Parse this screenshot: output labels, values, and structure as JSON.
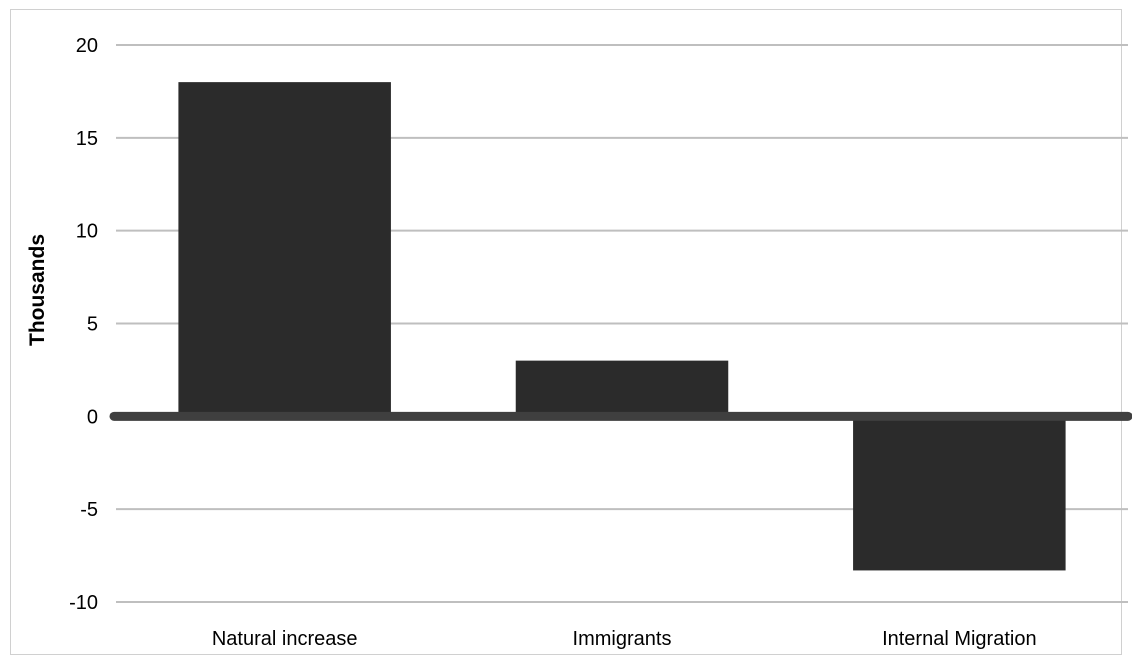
{
  "chart_data": {
    "type": "bar",
    "title": "",
    "xlabel": "",
    "ylabel": "Thousands",
    "categories": [
      "Natural increase",
      "Immigrants",
      "Internal Migration"
    ],
    "values": [
      18,
      3,
      -8.3
    ],
    "ylim": [
      -10,
      20
    ],
    "yticks": [
      20,
      15,
      10,
      5,
      0,
      -5,
      -10
    ],
    "grid": true,
    "legend": "none",
    "colors": {
      "bar": "#2b2b2b",
      "gridline": "#bfbfbf",
      "zero_line": "#3f3f3f"
    }
  }
}
